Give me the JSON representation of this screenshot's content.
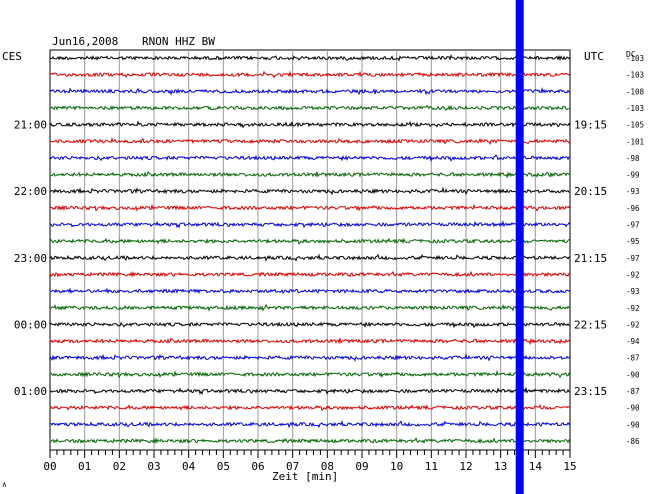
{
  "header": {
    "date": "Jun16,2008",
    "station": "RNON HHZ BW",
    "left_zone": "CES",
    "right_zone": "UTC",
    "dc_label": "DC",
    "corner_mark": "∧"
  },
  "chart_data": {
    "type": "line",
    "title": "Jun16,2008   RNON HHZ BW",
    "xlabel": "Zeit [min]",
    "ylabel": "",
    "xlim": [
      0,
      15
    ],
    "x_ticks": [
      "00",
      "01",
      "02",
      "03",
      "04",
      "05",
      "06",
      "07",
      "08",
      "09",
      "10",
      "11",
      "12",
      "13",
      "14",
      "15"
    ],
    "trace_colors": [
      "#000000",
      "#dd0000",
      "#0000dd",
      "#006600"
    ],
    "dc_offsets": [
      -103,
      -103,
      -108,
      -103,
      -105,
      -101,
      -98,
      -99,
      -93,
      -96,
      -97,
      -95,
      -97,
      -92,
      -93,
      -92,
      -92,
      -94,
      -87,
      -90,
      -87,
      -90,
      -90,
      -86
    ],
    "left_time_labels": [
      {
        "row": 4,
        "text": "21:00"
      },
      {
        "row": 8,
        "text": "22:00"
      },
      {
        "row": 12,
        "text": "23:00"
      },
      {
        "row": 16,
        "text": "00:00"
      },
      {
        "row": 20,
        "text": "01:00"
      }
    ],
    "right_time_labels": [
      {
        "row": 4,
        "text": "19:15"
      },
      {
        "row": 8,
        "text": "20:15"
      },
      {
        "row": 12,
        "text": "21:15"
      },
      {
        "row": 16,
        "text": "22:15"
      },
      {
        "row": 20,
        "text": "23:15"
      }
    ],
    "event_marker": {
      "minute": 13.55,
      "color": "#0000ff"
    },
    "grid": true
  }
}
